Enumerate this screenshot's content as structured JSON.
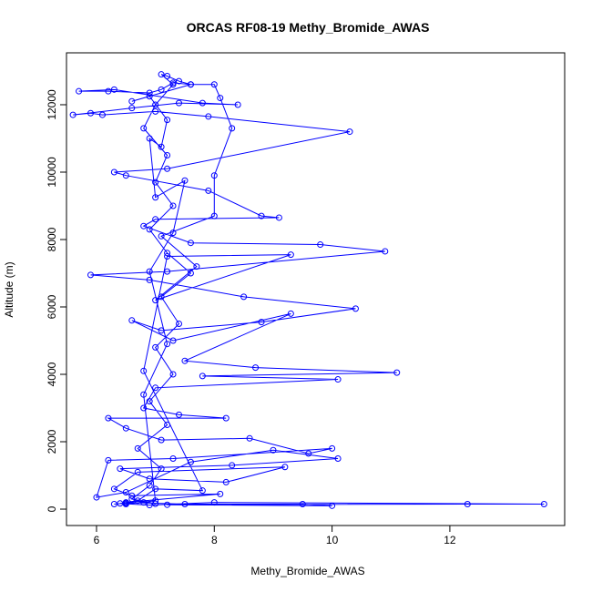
{
  "chart_data": {
    "type": "line",
    "title": "ORCAS RF08-19 Methy_Bromide_AWAS",
    "x_label": "Methy_Bromide_AWAS",
    "y_label": "Altitude (m)",
    "xlim": [
      5.49,
      13.95
    ],
    "ylim": [
      -486,
      13540
    ],
    "xticks": [
      6,
      8,
      10,
      12
    ],
    "yticks": [
      0,
      2000,
      4000,
      6000,
      8000,
      10000,
      12000
    ],
    "series": [
      {
        "name": "Methy_Bromide_AWAS",
        "color": "#0000ff",
        "x": [
          6.3,
          6.5,
          6.8,
          7.0,
          6.6,
          6.9,
          7.1,
          6.7,
          7.2,
          6.9,
          7.3,
          7.0,
          7.4,
          7.1,
          7.6,
          7.2,
          6.9,
          7.3,
          7.0,
          7.2,
          6.8,
          7.0,
          7.3,
          7.1,
          7.2,
          7.4,
          7.6,
          7.3,
          7.1,
          6.9,
          6.2,
          5.7,
          6.3,
          7.8,
          8.4,
          7.4,
          6.6,
          5.6,
          5.9,
          6.1,
          7.0,
          7.9,
          10.3,
          7.2,
          6.3,
          6.5,
          7.9,
          8.8,
          9.1,
          7.0,
          6.8,
          7.6,
          9.8,
          10.9,
          7.2,
          5.9,
          6.9,
          8.5,
          10.4,
          8.8,
          7.1,
          6.6,
          7.3,
          9.3,
          7.5,
          8.7,
          11.1,
          7.8,
          10.1,
          7.0,
          6.8,
          7.4,
          8.2,
          6.2,
          6.5,
          7.1,
          8.6,
          9.6,
          10.0,
          7.3,
          6.2,
          6.0,
          6.5,
          7.6,
          9.0,
          10.1,
          8.3,
          6.4,
          6.9,
          8.2,
          9.2,
          6.7,
          6.3,
          6.6,
          8.1,
          6.5,
          7.5,
          9.5,
          10.0,
          7.2,
          12.3,
          13.6,
          8.0,
          6.9,
          6.4,
          6.7,
          7.0,
          7.8,
          6.8,
          7.2,
          9.3,
          7.0,
          7.7,
          7.1,
          8.0,
          8.0,
          8.3,
          8.1,
          8.0,
          7.6,
          6.6,
          6.9,
          7.2,
          7.1,
          6.9,
          7.0,
          7.5,
          7.3,
          6.9,
          7.2,
          6.8,
          7.0,
          6.5
        ],
        "values": [
          150,
          180,
          200,
          160,
          300,
          700,
          1200,
          1800,
          2500,
          3200,
          4000,
          4800,
          5500,
          6300,
          7000,
          7600,
          8300,
          9000,
          9700,
          10500,
          11300,
          12000,
          12600,
          12900,
          12850,
          12700,
          12600,
          12650,
          12450,
          12350,
          12400,
          12400,
          12450,
          12050,
          12000,
          12050,
          11900,
          11700,
          11750,
          11700,
          11800,
          11650,
          11200,
          10100,
          10000,
          9900,
          9450,
          8700,
          8650,
          8600,
          8400,
          7900,
          7850,
          7650,
          7050,
          6950,
          6800,
          6300,
          5950,
          5550,
          5300,
          5600,
          5000,
          5800,
          4400,
          4200,
          4050,
          3950,
          3850,
          3600,
          3000,
          2800,
          2700,
          2700,
          2400,
          2050,
          2100,
          1650,
          1800,
          1500,
          1450,
          350,
          500,
          1400,
          1750,
          1500,
          1300,
          1200,
          900,
          800,
          1250,
          1100,
          600,
          400,
          450,
          200,
          150,
          150,
          100,
          130,
          150,
          150,
          200,
          120,
          170,
          250,
          600,
          550,
          4100,
          7500,
          7550,
          6200,
          7200,
          8100,
          8700,
          9900,
          11300,
          12200,
          12600,
          12600,
          12100,
          12250,
          11550,
          10750,
          11000,
          9250,
          9750,
          8200,
          7050,
          4900,
          3400,
          250,
          150
        ]
      }
    ]
  }
}
